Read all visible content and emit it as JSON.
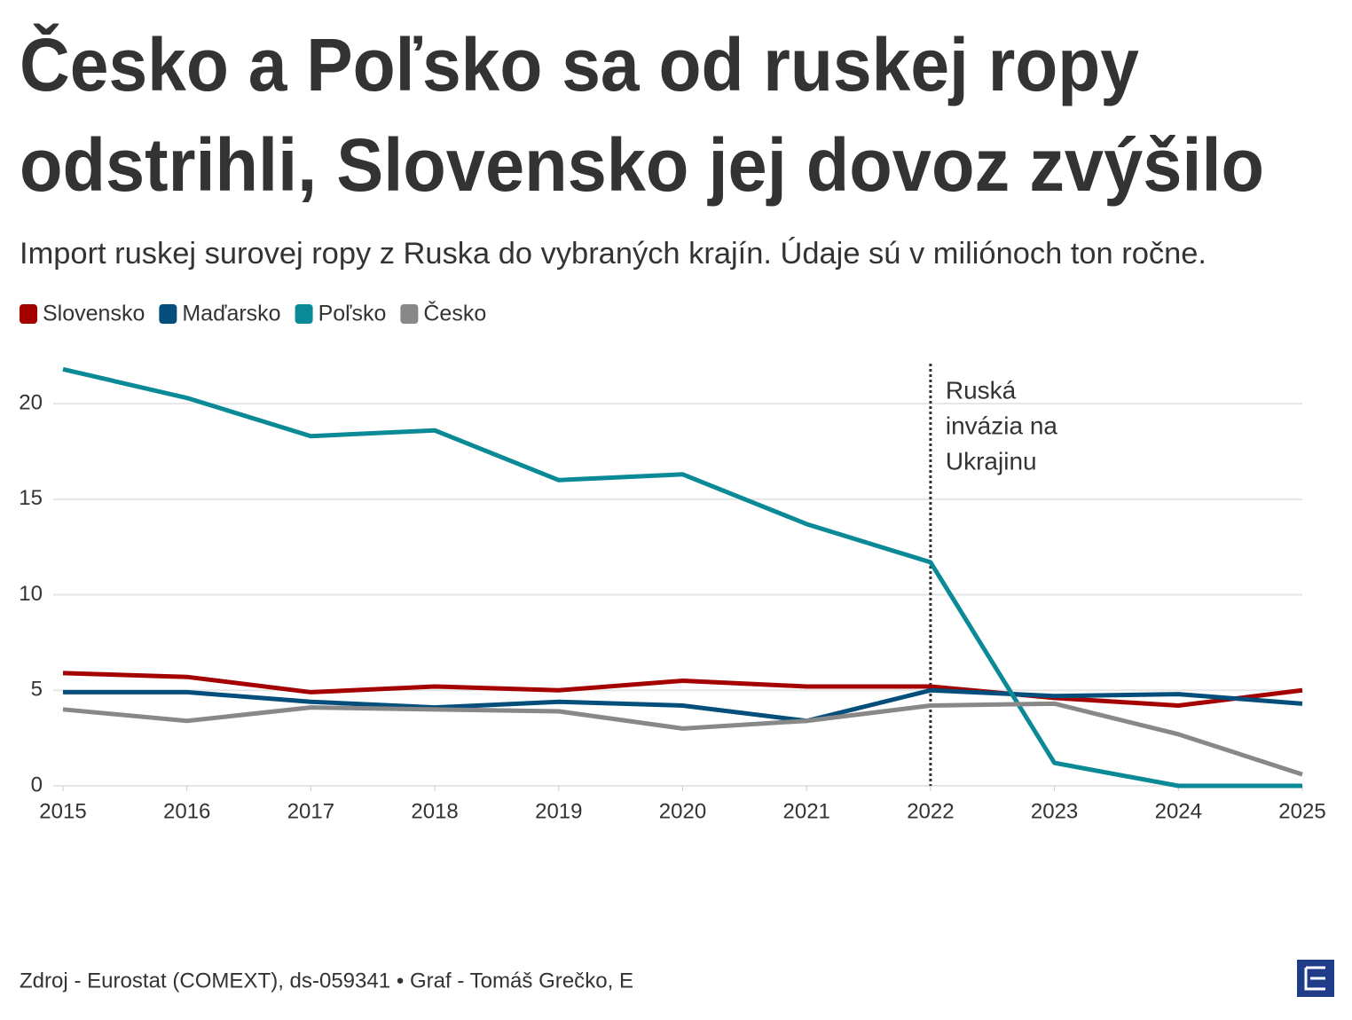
{
  "chart_data": {
    "type": "line",
    "title": [
      "Česko a Poľsko sa od ruskej ropy",
      "odstrihli, Slovensko jej dovoz zvýšilo"
    ],
    "subtitle": "Import ruskej surovej ropy z Ruska do vybraných krajín. Údaje sú v miliónoch ton ročne.",
    "x": [
      2015,
      2016,
      2017,
      2018,
      2019,
      2020,
      2021,
      2022,
      2023,
      2024,
      2025
    ],
    "series": [
      {
        "name": "Slovensko",
        "color": "#a50000",
        "values": [
          5.9,
          5.7,
          4.9,
          5.2,
          5.0,
          5.5,
          5.2,
          5.2,
          4.6,
          4.2,
          5.0
        ]
      },
      {
        "name": "Maďarsko",
        "color": "#034e7b",
        "values": [
          4.9,
          4.9,
          4.4,
          4.1,
          4.4,
          4.2,
          3.4,
          5.0,
          4.7,
          4.8,
          4.3
        ]
      },
      {
        "name": "Poľsko",
        "color": "#0a8a96",
        "values": [
          21.8,
          20.3,
          18.3,
          18.6,
          16.0,
          16.3,
          13.7,
          11.7,
          1.2,
          0,
          0
        ]
      },
      {
        "name": "Česko",
        "color": "#888888",
        "values": [
          4.0,
          3.4,
          4.1,
          4.0,
          3.9,
          3.0,
          3.4,
          4.2,
          4.3,
          2.7,
          0.6
        ]
      }
    ],
    "xlim": [
      2015,
      2025
    ],
    "xticks": [
      2015,
      2016,
      2017,
      2018,
      2019,
      2020,
      2021,
      2022,
      2023,
      2024,
      2025
    ],
    "ylim": [
      0,
      22
    ],
    "yticks": [
      0,
      5,
      10,
      15,
      20
    ],
    "grid": true,
    "annotation": {
      "x": 2022,
      "text": [
        "Ruská",
        "invázia na",
        "Ukrajinu"
      ]
    },
    "source": "Zdroj - Eurostat (COMEXT), ds-059341 • Graf - Tomáš Grečko, E"
  }
}
